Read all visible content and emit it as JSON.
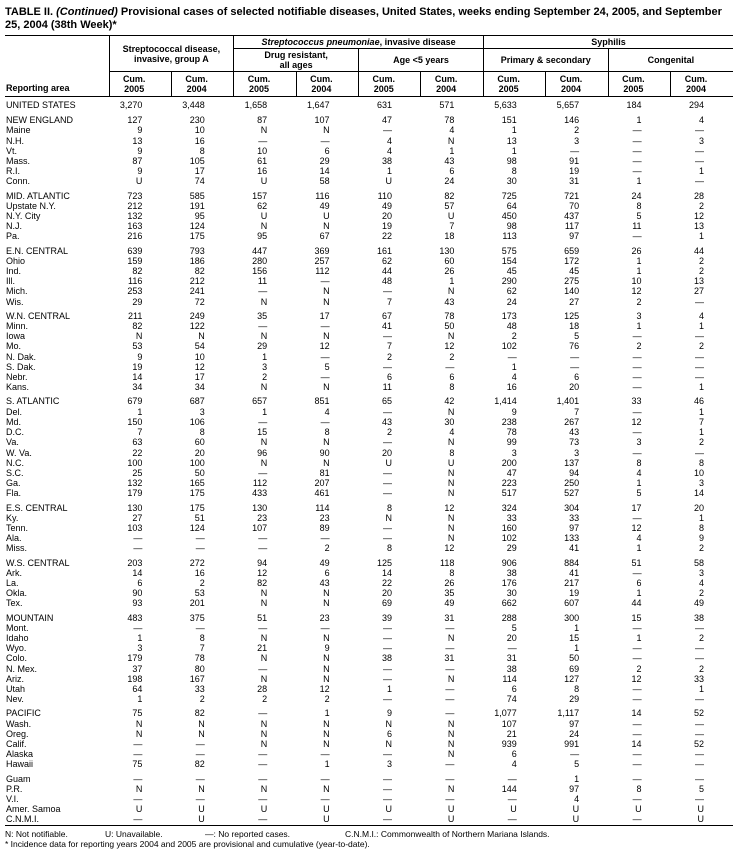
{
  "title": {
    "label": "TABLE II.",
    "continued": "(Continued)",
    "text": "Provisional cases of selected notifiable diseases, United States, weeks ending September 24, 2005, and September 25, 2004 (38th Week)*"
  },
  "header": {
    "reporting_area": "Reporting area",
    "groups": {
      "strep_a_line1": "Streptococcal disease,",
      "strep_a_line2": "invasive, group A",
      "strep_pneumo_italic": "Streptococcus pneumoniae",
      "strep_pneumo_rest": ", invasive disease",
      "syphilis": "Syphilis"
    },
    "subgroups": {
      "drug_line1": "Drug resistant,",
      "drug_line2": "all ages",
      "age_lt5": "Age <5 years",
      "primary_secondary": "Primary & secondary",
      "congenital": "Congenital"
    },
    "col": {
      "cum": "Cum.",
      "y2005": "2005",
      "y2004": "2004"
    }
  },
  "rows": [
    {
      "type": "total",
      "area": "UNITED STATES",
      "values": [
        "3,270",
        "3,448",
        "1,658",
        "1,647",
        "631",
        "571",
        "5,633",
        "5,657",
        "184",
        "294"
      ]
    },
    {
      "type": "region",
      "gap": true,
      "area": "NEW ENGLAND",
      "values": [
        "127",
        "230",
        "87",
        "107",
        "47",
        "78",
        "151",
        "146",
        "1",
        "4"
      ]
    },
    {
      "type": "state",
      "area": "Maine",
      "values": [
        "9",
        "10",
        "N",
        "N",
        "—",
        "4",
        "1",
        "2",
        "—",
        "—"
      ]
    },
    {
      "type": "state",
      "area": "N.H.",
      "values": [
        "13",
        "16",
        "—",
        "—",
        "4",
        "N",
        "13",
        "3",
        "—",
        "3"
      ]
    },
    {
      "type": "state",
      "area": "Vt.",
      "values": [
        "9",
        "8",
        "10",
        "6",
        "4",
        "1",
        "1",
        "—",
        "—",
        "—"
      ]
    },
    {
      "type": "state",
      "area": "Mass.",
      "values": [
        "87",
        "105",
        "61",
        "29",
        "38",
        "43",
        "98",
        "91",
        "—",
        "—"
      ]
    },
    {
      "type": "state",
      "area": "R.I.",
      "values": [
        "9",
        "17",
        "16",
        "14",
        "1",
        "6",
        "8",
        "19",
        "—",
        "1"
      ]
    },
    {
      "type": "state",
      "area": "Conn.",
      "values": [
        "U",
        "74",
        "U",
        "58",
        "U",
        "24",
        "30",
        "31",
        "1",
        "—"
      ]
    },
    {
      "type": "region",
      "gap": true,
      "area": "MID. ATLANTIC",
      "values": [
        "723",
        "585",
        "157",
        "116",
        "110",
        "82",
        "725",
        "721",
        "24",
        "28"
      ]
    },
    {
      "type": "state",
      "area": "Upstate N.Y.",
      "values": [
        "212",
        "191",
        "62",
        "49",
        "49",
        "57",
        "64",
        "70",
        "8",
        "2"
      ]
    },
    {
      "type": "state",
      "area": "N.Y. City",
      "values": [
        "132",
        "95",
        "U",
        "U",
        "20",
        "U",
        "450",
        "437",
        "5",
        "12"
      ]
    },
    {
      "type": "state",
      "area": "N.J.",
      "values": [
        "163",
        "124",
        "N",
        "N",
        "19",
        "7",
        "98",
        "117",
        "11",
        "13"
      ]
    },
    {
      "type": "state",
      "area": "Pa.",
      "values": [
        "216",
        "175",
        "95",
        "67",
        "22",
        "18",
        "113",
        "97",
        "—",
        "1"
      ]
    },
    {
      "type": "region",
      "gap": true,
      "area": "E.N. CENTRAL",
      "values": [
        "639",
        "793",
        "447",
        "369",
        "161",
        "130",
        "575",
        "659",
        "26",
        "44"
      ]
    },
    {
      "type": "state",
      "area": "Ohio",
      "values": [
        "159",
        "186",
        "280",
        "257",
        "62",
        "60",
        "154",
        "172",
        "1",
        "2"
      ]
    },
    {
      "type": "state",
      "area": "Ind.",
      "values": [
        "82",
        "82",
        "156",
        "112",
        "44",
        "26",
        "45",
        "45",
        "1",
        "2"
      ]
    },
    {
      "type": "state",
      "area": "Ill.",
      "values": [
        "116",
        "212",
        "11",
        "—",
        "48",
        "1",
        "290",
        "275",
        "10",
        "13"
      ]
    },
    {
      "type": "state",
      "area": "Mich.",
      "values": [
        "253",
        "241",
        "—",
        "N",
        "—",
        "N",
        "62",
        "140",
        "12",
        "27"
      ]
    },
    {
      "type": "state",
      "area": "Wis.",
      "values": [
        "29",
        "72",
        "N",
        "N",
        "7",
        "43",
        "24",
        "27",
        "2",
        "—"
      ]
    },
    {
      "type": "region",
      "gap": true,
      "area": "W.N. CENTRAL",
      "values": [
        "211",
        "249",
        "35",
        "17",
        "67",
        "78",
        "173",
        "125",
        "3",
        "4"
      ]
    },
    {
      "type": "state",
      "area": "Minn.",
      "values": [
        "82",
        "122",
        "—",
        "—",
        "41",
        "50",
        "48",
        "18",
        "1",
        "1"
      ]
    },
    {
      "type": "state",
      "area": "Iowa",
      "values": [
        "N",
        "N",
        "N",
        "N",
        "—",
        "N",
        "2",
        "5",
        "—",
        "—"
      ]
    },
    {
      "type": "state",
      "area": "Mo.",
      "values": [
        "53",
        "54",
        "29",
        "12",
        "7",
        "12",
        "102",
        "76",
        "2",
        "2"
      ]
    },
    {
      "type": "state",
      "area": "N. Dak.",
      "values": [
        "9",
        "10",
        "1",
        "—",
        "2",
        "2",
        "—",
        "—",
        "—",
        "—"
      ]
    },
    {
      "type": "state",
      "area": "S. Dak.",
      "values": [
        "19",
        "12",
        "3",
        "5",
        "—",
        "—",
        "1",
        "—",
        "—",
        "—"
      ]
    },
    {
      "type": "state",
      "area": "Nebr.",
      "values": [
        "14",
        "17",
        "2",
        "—",
        "6",
        "6",
        "4",
        "6",
        "—",
        "—"
      ]
    },
    {
      "type": "state",
      "area": "Kans.",
      "values": [
        "34",
        "34",
        "N",
        "N",
        "11",
        "8",
        "16",
        "20",
        "—",
        "1"
      ]
    },
    {
      "type": "region",
      "gap": true,
      "area": "S. ATLANTIC",
      "values": [
        "679",
        "687",
        "657",
        "851",
        "65",
        "42",
        "1,414",
        "1,401",
        "33",
        "46"
      ]
    },
    {
      "type": "state",
      "area": "Del.",
      "values": [
        "1",
        "3",
        "1",
        "4",
        "—",
        "N",
        "9",
        "7",
        "—",
        "1"
      ]
    },
    {
      "type": "state",
      "area": "Md.",
      "values": [
        "150",
        "106",
        "—",
        "—",
        "43",
        "30",
        "238",
        "267",
        "12",
        "7"
      ]
    },
    {
      "type": "state",
      "area": "D.C.",
      "values": [
        "7",
        "8",
        "15",
        "8",
        "2",
        "4",
        "78",
        "43",
        "—",
        "1"
      ]
    },
    {
      "type": "state",
      "area": "Va.",
      "values": [
        "63",
        "60",
        "N",
        "N",
        "—",
        "N",
        "99",
        "73",
        "3",
        "2"
      ]
    },
    {
      "type": "state",
      "area": "W. Va.",
      "values": [
        "22",
        "20",
        "96",
        "90",
        "20",
        "8",
        "3",
        "3",
        "—",
        "—"
      ]
    },
    {
      "type": "state",
      "area": "N.C.",
      "values": [
        "100",
        "100",
        "N",
        "N",
        "U",
        "U",
        "200",
        "137",
        "8",
        "8"
      ]
    },
    {
      "type": "state",
      "area": "S.C.",
      "values": [
        "25",
        "50",
        "—",
        "81",
        "—",
        "N",
        "47",
        "94",
        "4",
        "10"
      ]
    },
    {
      "type": "state",
      "area": "Ga.",
      "values": [
        "132",
        "165",
        "112",
        "207",
        "—",
        "N",
        "223",
        "250",
        "1",
        "3"
      ]
    },
    {
      "type": "state",
      "area": "Fla.",
      "values": [
        "179",
        "175",
        "433",
        "461",
        "—",
        "N",
        "517",
        "527",
        "5",
        "14"
      ]
    },
    {
      "type": "region",
      "gap": true,
      "area": "E.S. CENTRAL",
      "values": [
        "130",
        "175",
        "130",
        "114",
        "8",
        "12",
        "324",
        "304",
        "17",
        "20"
      ]
    },
    {
      "type": "state",
      "area": "Ky.",
      "values": [
        "27",
        "51",
        "23",
        "23",
        "N",
        "N",
        "33",
        "33",
        "—",
        "1"
      ]
    },
    {
      "type": "state",
      "area": "Tenn.",
      "values": [
        "103",
        "124",
        "107",
        "89",
        "—",
        "N",
        "160",
        "97",
        "12",
        "8"
      ]
    },
    {
      "type": "state",
      "area": "Ala.",
      "values": [
        "—",
        "—",
        "—",
        "—",
        "—",
        "N",
        "102",
        "133",
        "4",
        "9"
      ]
    },
    {
      "type": "state",
      "area": "Miss.",
      "values": [
        "—",
        "—",
        "—",
        "2",
        "8",
        "12",
        "29",
        "41",
        "1",
        "2"
      ]
    },
    {
      "type": "region",
      "gap": true,
      "area": "W.S. CENTRAL",
      "values": [
        "203",
        "272",
        "94",
        "49",
        "125",
        "118",
        "906",
        "884",
        "51",
        "58"
      ]
    },
    {
      "type": "state",
      "area": "Ark.",
      "values": [
        "14",
        "16",
        "12",
        "6",
        "14",
        "8",
        "38",
        "41",
        "—",
        "3"
      ]
    },
    {
      "type": "state",
      "area": "La.",
      "values": [
        "6",
        "2",
        "82",
        "43",
        "22",
        "26",
        "176",
        "217",
        "6",
        "4"
      ]
    },
    {
      "type": "state",
      "area": "Okla.",
      "values": [
        "90",
        "53",
        "N",
        "N",
        "20",
        "35",
        "30",
        "19",
        "1",
        "2"
      ]
    },
    {
      "type": "state",
      "area": "Tex.",
      "values": [
        "93",
        "201",
        "N",
        "N",
        "69",
        "49",
        "662",
        "607",
        "44",
        "49"
      ]
    },
    {
      "type": "region",
      "gap": true,
      "area": "MOUNTAIN",
      "values": [
        "483",
        "375",
        "51",
        "23",
        "39",
        "31",
        "288",
        "300",
        "15",
        "38"
      ]
    },
    {
      "type": "state",
      "area": "Mont.",
      "values": [
        "—",
        "—",
        "—",
        "—",
        "—",
        "—",
        "5",
        "1",
        "—",
        "—"
      ]
    },
    {
      "type": "state",
      "area": "Idaho",
      "values": [
        "1",
        "8",
        "N",
        "N",
        "—",
        "N",
        "20",
        "15",
        "1",
        "2"
      ]
    },
    {
      "type": "state",
      "area": "Wyo.",
      "values": [
        "3",
        "7",
        "21",
        "9",
        "—",
        "—",
        "—",
        "1",
        "—",
        "—"
      ]
    },
    {
      "type": "state",
      "area": "Colo.",
      "values": [
        "179",
        "78",
        "N",
        "N",
        "38",
        "31",
        "31",
        "50",
        "—",
        "—"
      ]
    },
    {
      "type": "state",
      "area": "N. Mex.",
      "values": [
        "37",
        "80",
        "—",
        "N",
        "—",
        "—",
        "38",
        "69",
        "2",
        "2"
      ]
    },
    {
      "type": "state",
      "area": "Ariz.",
      "values": [
        "198",
        "167",
        "N",
        "N",
        "—",
        "N",
        "114",
        "127",
        "12",
        "33"
      ]
    },
    {
      "type": "state",
      "area": "Utah",
      "values": [
        "64",
        "33",
        "28",
        "12",
        "1",
        "—",
        "6",
        "8",
        "—",
        "1"
      ]
    },
    {
      "type": "state",
      "area": "Nev.",
      "values": [
        "1",
        "2",
        "2",
        "2",
        "—",
        "—",
        "74",
        "29",
        "—",
        "—"
      ]
    },
    {
      "type": "region",
      "gap": true,
      "area": "PACIFIC",
      "values": [
        "75",
        "82",
        "—",
        "1",
        "9",
        "—",
        "1,077",
        "1,117",
        "14",
        "52"
      ]
    },
    {
      "type": "state",
      "area": "Wash.",
      "values": [
        "N",
        "N",
        "N",
        "N",
        "N",
        "N",
        "107",
        "97",
        "—",
        "—"
      ]
    },
    {
      "type": "state",
      "area": "Oreg.",
      "values": [
        "N",
        "N",
        "N",
        "N",
        "6",
        "N",
        "21",
        "24",
        "—",
        "—"
      ]
    },
    {
      "type": "state",
      "area": "Calif.",
      "values": [
        "—",
        "—",
        "N",
        "N",
        "N",
        "N",
        "939",
        "991",
        "14",
        "52"
      ]
    },
    {
      "type": "state",
      "area": "Alaska",
      "values": [
        "—",
        "—",
        "—",
        "—",
        "—",
        "N",
        "6",
        "—",
        "—",
        "—"
      ]
    },
    {
      "type": "state",
      "area": "Hawaii",
      "values": [
        "75",
        "82",
        "—",
        "1",
        "3",
        "—",
        "4",
        "5",
        "—",
        "—"
      ]
    },
    {
      "type": "state",
      "gap": true,
      "area": "Guam",
      "values": [
        "—",
        "—",
        "—",
        "—",
        "—",
        "—",
        "—",
        "1",
        "—",
        "—"
      ]
    },
    {
      "type": "state",
      "area": "P.R.",
      "values": [
        "N",
        "N",
        "N",
        "N",
        "—",
        "N",
        "144",
        "97",
        "8",
        "5"
      ]
    },
    {
      "type": "state",
      "area": "V.I.",
      "values": [
        "—",
        "—",
        "—",
        "—",
        "—",
        "—",
        "—",
        "4",
        "—",
        "—"
      ]
    },
    {
      "type": "state",
      "area": "Amer. Samoa",
      "values": [
        "U",
        "U",
        "U",
        "U",
        "U",
        "U",
        "U",
        "U",
        "U",
        "U"
      ]
    },
    {
      "type": "state",
      "area": "C.N.M.I.",
      "values": [
        "—",
        "U",
        "—",
        "U",
        "—",
        "U",
        "—",
        "U",
        "—",
        "U"
      ]
    }
  ],
  "footnotes": {
    "legend": [
      "N: Not notifiable.",
      "U: Unavailable.",
      "—: No reported cases.",
      "C.N.M.I.: Commonwealth of Northern Mariana Islands."
    ],
    "note": "* Incidence data for reporting years 2004 and 2005 are provisional and cumulative (year-to-date)."
  }
}
